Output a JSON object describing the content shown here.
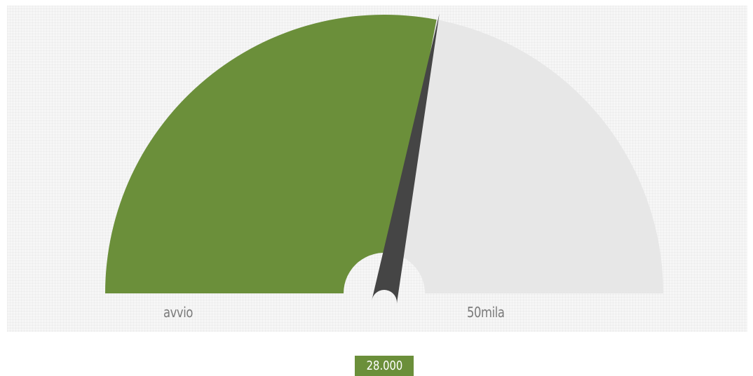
{
  "chart_data": {
    "type": "gauge",
    "min_label": "avvio",
    "max_label": "50mila",
    "min": 0,
    "max": 50000,
    "value": 28000,
    "value_label": "28.000"
  },
  "colors": {
    "fill": "#6b8f3a",
    "track": "#e7e7e7",
    "needle": "#454545",
    "label": "#7a7a7a",
    "badge_text": "#ffffff"
  }
}
